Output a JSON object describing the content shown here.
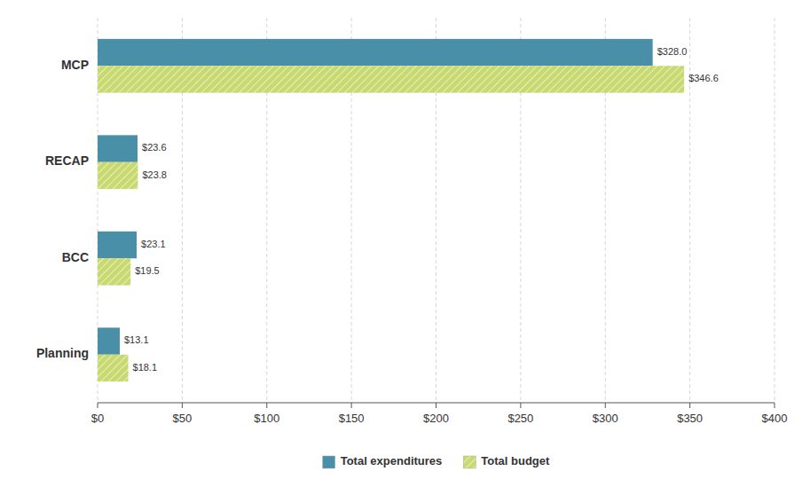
{
  "chart_data": {
    "type": "bar",
    "orientation": "horizontal",
    "categories": [
      "MCP",
      "RECAP",
      "BCC",
      "Planning"
    ],
    "series": [
      {
        "name": "Total expenditures",
        "color": "#4a8fa8",
        "values": [
          328.0,
          23.6,
          23.1,
          13.1
        ],
        "value_labels": [
          "$328.0",
          "$23.6",
          "$23.1",
          "$13.1"
        ]
      },
      {
        "name": "Total budget",
        "color": "#c8d96f",
        "values": [
          346.6,
          23.8,
          19.5,
          18.1
        ],
        "value_labels": [
          "$346.6",
          "$23.8",
          "$19.5",
          "$18.1"
        ]
      }
    ],
    "xlim": [
      0,
      400
    ],
    "xticks": [
      {
        "value": 0,
        "label": "$0"
      },
      {
        "value": 50,
        "label": "$50"
      },
      {
        "value": 100,
        "label": "$100"
      },
      {
        "value": 150,
        "label": "$150"
      },
      {
        "value": 200,
        "label": "$200"
      },
      {
        "value": 250,
        "label": "$250"
      },
      {
        "value": 300,
        "label": "$300"
      },
      {
        "value": 350,
        "label": "$350"
      },
      {
        "value": 400,
        "label": "$400"
      }
    ],
    "grid": true,
    "legend": "bottom",
    "data_labels": true
  }
}
